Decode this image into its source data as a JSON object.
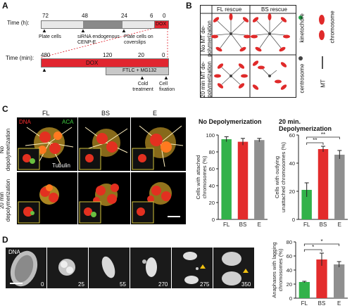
{
  "colors": {
    "dox": "#e1252f",
    "siRNA": "#8a8a8a",
    "ftlc": "#c8c8c8",
    "fl": "#32b24a",
    "bs": "#e32c2c",
    "e": "#8f8f8f",
    "kinetochore_dot": "#1fa346",
    "chromosome": "#e02a2a"
  },
  "panelA": {
    "label": "A",
    "time_h_label": "Time (h):",
    "time_min_label": "Time (min):",
    "ticks_h": [
      "72",
      "48",
      "24",
      "6",
      "0"
    ],
    "ticks_min": [
      "480",
      "120",
      "20",
      "0"
    ],
    "dox": "DOX",
    "dox_lower": "DOX",
    "ftlc": "FTLC + MG132",
    "events_top": [
      "Plate cells",
      "siRNA endogenous CENP-E",
      "Plate cells on coverslips"
    ],
    "events_bottom": [
      "Cold treatment",
      "Cell fixation"
    ]
  },
  "panelB": {
    "label": "B",
    "col_fl": "FL rescue",
    "col_bs": "BS rescue",
    "row1": "No MT de-polymerization",
    "row2": "20 min MT de-polymerization",
    "legend": [
      "kinetochore",
      "chromosome",
      "centrosome",
      "MT"
    ]
  },
  "panelC": {
    "label": "C",
    "col_labels": [
      "FL",
      "BS",
      "E"
    ],
    "dna": "DNA",
    "aca": "ACA",
    "tubulin": "Tubulin",
    "row1": "No depolymerization",
    "row2": "20 min depolymerization"
  },
  "panelD": {
    "label": "D",
    "dna": "DNA",
    "timepoints": [
      "0",
      "25",
      "55",
      "270",
      "275",
      "350"
    ]
  },
  "chart_data": [
    {
      "type": "bar",
      "title": "No Depolymerization",
      "categories": [
        "FL",
        "BS",
        "E"
      ],
      "values": [
        95,
        92,
        94
      ],
      "errors": [
        3,
        4,
        2
      ],
      "ylabel": "Cells with attached chromosomes (%)",
      "ylim": [
        0,
        100
      ],
      "yticks": [
        "0",
        "20",
        "40",
        "60",
        "80",
        "100"
      ]
    },
    {
      "type": "bar",
      "title": "20 min. Depolymerization",
      "categories": [
        "FL",
        "BS",
        "E"
      ],
      "values": [
        21,
        50,
        46
      ],
      "errors": [
        5,
        2,
        3
      ],
      "ylabel": "Cells with outlying unattached chromosomes (%)",
      "ylim": [
        0,
        60
      ],
      "yticks": [
        "0",
        "20",
        "40",
        "60"
      ],
      "significance": [
        "**",
        "**"
      ]
    },
    {
      "type": "bar",
      "title": "",
      "categories": [
        "FL",
        "BS",
        "E"
      ],
      "values": [
        23,
        55,
        48
      ],
      "errors": [
        1,
        9,
        4
      ],
      "ylabel": "Anaphases with lagging chromosomes (%)",
      "ylim": [
        0,
        80
      ],
      "yticks": [
        "0",
        "20",
        "40",
        "60",
        "80"
      ],
      "significance": [
        "*",
        "*"
      ]
    }
  ]
}
